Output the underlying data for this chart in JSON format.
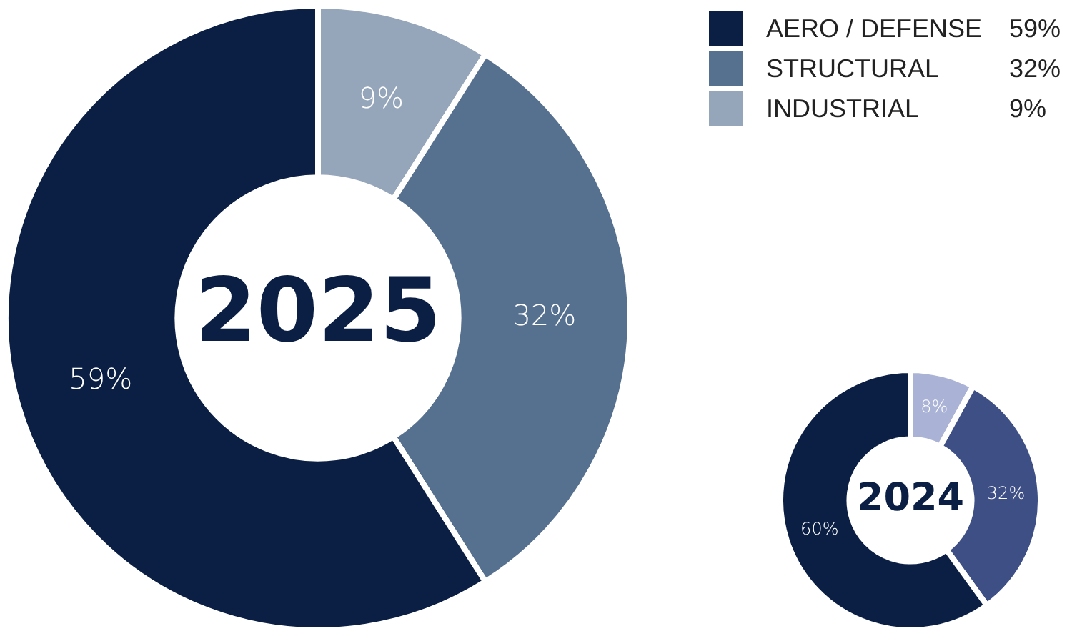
{
  "chart_data": [
    {
      "type": "donut",
      "title": "2025",
      "categories": [
        "AERO / DEFENSE",
        "STRUCTURAL",
        "INDUSTRIAL"
      ],
      "values": [
        59,
        32,
        9
      ],
      "value_labels": [
        "59%",
        "32%",
        "9%"
      ],
      "colors": [
        "#0b1f45",
        "#56708f",
        "#95a5ba"
      ],
      "legend": "top right"
    },
    {
      "type": "donut",
      "title": "2024",
      "categories": [
        null,
        null,
        null
      ],
      "values": [
        60,
        32,
        8
      ],
      "value_labels": [
        "60%",
        "32%",
        "8%"
      ],
      "colors": [
        "#0b1f45",
        "#3e4f86",
        "#aab3d6"
      ]
    }
  ]
}
